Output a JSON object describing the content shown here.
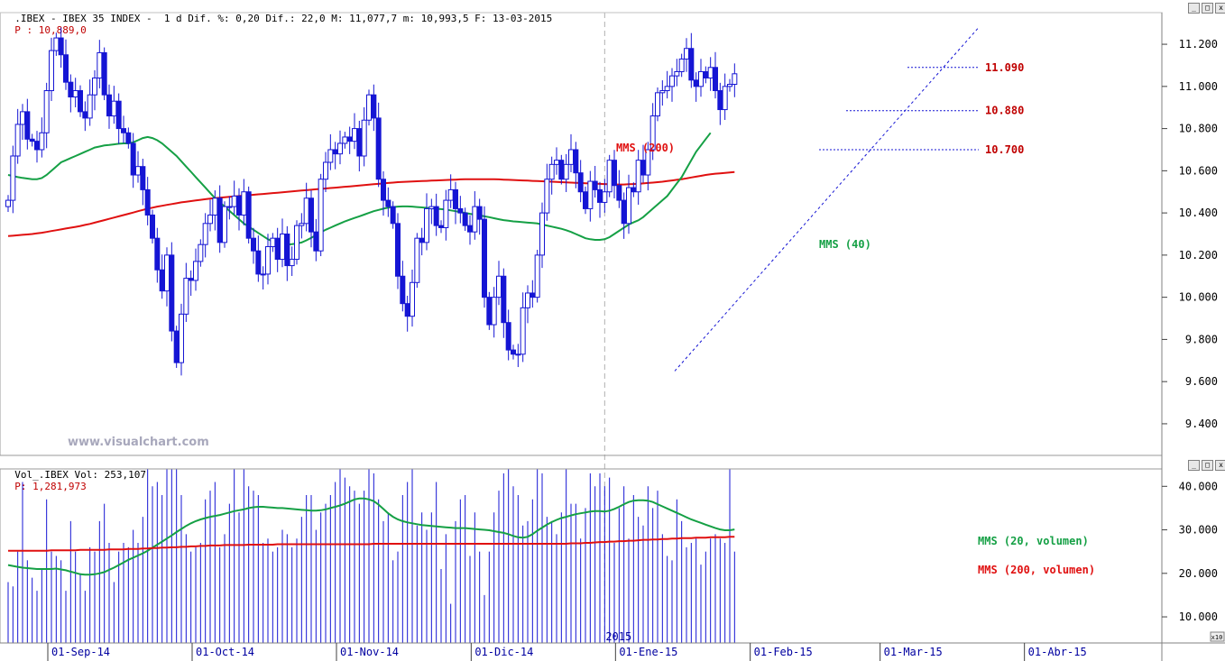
{
  "header": {
    "price_info": ".IBEX - IBEX 35 INDEX -  1 d Dif. %: 0,20 Dif.: 22,0 M: 11,077,7 m: 10,993,5 F: 13-03-2015",
    "price_last": "P : 10,889,0",
    "volume_info": "Vol_.IBEX Vol: 253,107",
    "volume_last": "P: 1,281,973"
  },
  "watermark": "www.visualchart.com",
  "window_buttons": [
    "_",
    "□",
    "x"
  ],
  "scale_badge": "x10",
  "colors": {
    "candle": "#1515d4",
    "ma_fast": "#15a045",
    "ma_slow": "#e01010",
    "level_label": "#c00000",
    "axis": "#0000a0",
    "grid": "#b0b0b0"
  },
  "chart_data": [
    {
      "type": "candlestick",
      "title": "IBEX 35 INDEX",
      "ylim": [
        9250,
        11350
      ],
      "yticks": [
        "11.200",
        "11.000",
        "10.800",
        "10.600",
        "10.400",
        "10.200",
        "10.000",
        "9.800",
        "9.600",
        "9.400"
      ],
      "ytick_values": [
        11200,
        11000,
        10800,
        10600,
        10400,
        10200,
        10000,
        9800,
        9600,
        9400
      ],
      "xticks": [
        "01-Sep-14",
        "01-Oct-14",
        "01-Nov-14",
        "01-Dic-14",
        "01-Ene-15",
        "01-Feb-15",
        "01-Mar-15",
        "01-Abr-15"
      ],
      "xtick_index": [
        9,
        39,
        69,
        97,
        127,
        155,
        182,
        212
      ],
      "year_marker": {
        "label": "2015",
        "index": 124
      },
      "total_slots": 240,
      "closes": [
        10460,
        10670,
        10820,
        10880,
        10750,
        10740,
        10700,
        10780,
        10980,
        11170,
        11230,
        11150,
        11020,
        10950,
        10980,
        10880,
        10850,
        10960,
        11040,
        11160,
        10960,
        10860,
        10930,
        10800,
        10780,
        10730,
        10580,
        10620,
        10510,
        10390,
        10280,
        10130,
        10030,
        10200,
        9840,
        9690,
        9920,
        10090,
        10080,
        10170,
        10250,
        10350,
        10390,
        10470,
        10260,
        10430,
        10430,
        10480,
        10390,
        10500,
        10280,
        10220,
        10110,
        10110,
        10240,
        10280,
        10180,
        10300,
        10150,
        10180,
        10340,
        10350,
        10470,
        10310,
        10220,
        10560,
        10640,
        10700,
        10680,
        10730,
        10760,
        10740,
        10800,
        10670,
        10840,
        10960,
        10850,
        10560,
        10460,
        10430,
        10350,
        10100,
        9970,
        9910,
        10070,
        10280,
        10260,
        10420,
        10430,
        10340,
        10330,
        10460,
        10510,
        10420,
        10400,
        10340,
        10310,
        10430,
        10370,
        10000,
        9870,
        10000,
        10100,
        9880,
        9750,
        9730,
        9730,
        9950,
        10020,
        10000,
        10200,
        10400,
        10560,
        10630,
        10650,
        10560,
        10630,
        10700,
        10590,
        10500,
        10420,
        10550,
        10510,
        10450,
        10500,
        10650,
        10530,
        10460,
        10350,
        10520,
        10500,
        10650,
        10580,
        10700,
        10860,
        10970,
        10980,
        11000,
        11050,
        11070,
        11130,
        11180,
        11030,
        11000,
        11070,
        11040,
        11090,
        10980,
        10890,
        11000,
        11010,
        11060
      ],
      "series_label": "",
      "moving_averages": [
        {
          "name": "MMS (200)",
          "values": [
            10290,
            10292,
            10294,
            10296,
            10298,
            10300,
            10303,
            10306,
            10310,
            10314,
            10318,
            10322,
            10326,
            10330,
            10334,
            10338,
            10343,
            10348,
            10354,
            10360,
            10366,
            10372,
            10378,
            10384,
            10390,
            10396,
            10402,
            10408,
            10414,
            10420,
            10425,
            10430,
            10434,
            10438,
            10442,
            10446,
            10450,
            10453,
            10456,
            10459,
            10462,
            10465,
            10468,
            10470,
            10472,
            10474,
            10476,
            10478,
            10480,
            10482,
            10484,
            10486,
            10488,
            10490,
            10492,
            10494,
            10496,
            10498,
            10500,
            10502,
            10504,
            10506,
            10508,
            10510,
            10512,
            10514,
            10516,
            10518,
            10520,
            10522,
            10524,
            10526,
            10528,
            10530,
            10532,
            10534,
            10536,
            10538,
            10540,
            10542,
            10544,
            10546,
            10547,
            10548,
            10549,
            10550,
            10551,
            10552,
            10553,
            10554,
            10555,
            10556,
            10557,
            10558,
            10559,
            10560,
            10560,
            10560,
            10560,
            10560,
            10560,
            10560,
            10559,
            10558,
            10557,
            10556,
            10555,
            10554,
            10553,
            10552,
            10551,
            10550,
            10549,
            10548,
            10547,
            10546,
            10545,
            10544,
            10543,
            10542,
            10541,
            10540,
            10539,
            10538,
            10537,
            10536,
            10535,
            10535,
            10535,
            10536,
            10537,
            10538,
            10540,
            10542,
            10544,
            10546,
            10548,
            10551,
            10554,
            10557,
            10560,
            10564,
            10568,
            10572,
            10576,
            10580,
            10583,
            10586,
            10588,
            10590,
            10592,
            10594
          ]
        },
        {
          "name": "MMS (40)",
          "values": [
            10580,
            10575,
            10570,
            10566,
            10563,
            10560,
            10560,
            10565,
            10580,
            10600,
            10620,
            10640,
            10650,
            10660,
            10670,
            10680,
            10690,
            10700,
            10710,
            10715,
            10720,
            10722,
            10725,
            10728,
            10730,
            10730,
            10735,
            10745,
            10755,
            10760,
            10755,
            10745,
            10730,
            10710,
            10690,
            10670,
            10645,
            10620,
            10595,
            10570,
            10545,
            10520,
            10495,
            10470,
            10450,
            10430,
            10410,
            10390,
            10370,
            10350,
            10335,
            10320,
            10305,
            10290,
            10275,
            10265,
            10255,
            10250,
            10250,
            10252,
            10255,
            10260,
            10270,
            10282,
            10295,
            10308,
            10320,
            10330,
            10340,
            10350,
            10360,
            10368,
            10376,
            10384,
            10392,
            10400,
            10408,
            10414,
            10420,
            10425,
            10428,
            10430,
            10431,
            10431,
            10430,
            10428,
            10426,
            10424,
            10422,
            10420,
            10418,
            10416,
            10412,
            10408,
            10404,
            10400,
            10396,
            10392,
            10388,
            10384,
            10380,
            10375,
            10370,
            10366,
            10363,
            10360,
            10358,
            10356,
            10354,
            10352,
            10350,
            10345,
            10340,
            10335,
            10330,
            10325,
            10318,
            10310,
            10300,
            10290,
            10280,
            10275,
            10272,
            10272,
            10275,
            10285,
            10300,
            10315,
            10330,
            10345,
            10355,
            10365,
            10380,
            10400,
            10420,
            10440,
            10460,
            10480,
            10510,
            10540,
            10570,
            10610,
            10650,
            10690,
            10720,
            10750,
            10780
          ]
        }
      ],
      "levels": [
        {
          "label": "11.090",
          "value": 11090
        },
        {
          "label": "10.880",
          "value": 10885
        },
        {
          "label": "10.700",
          "value": 10700
        }
      ]
    },
    {
      "type": "bar",
      "title": "Vol_.IBEX",
      "ylim": [
        4000,
        44000
      ],
      "yticks": [
        "40.000",
        "30.000",
        "20.000",
        "10.000"
      ],
      "ytick_values": [
        40000,
        30000,
        20000,
        10000
      ],
      "values": [
        18000,
        17000,
        25000,
        41000,
        23000,
        19000,
        16000,
        21000,
        37000,
        25000,
        24000,
        23000,
        16000,
        32000,
        25000,
        20000,
        16000,
        26000,
        25000,
        32000,
        36000,
        27000,
        18000,
        25000,
        27000,
        26000,
        30000,
        27000,
        33000,
        44000,
        40000,
        41000,
        38000,
        44000,
        44000,
        44000,
        38000,
        29000,
        25000,
        26000,
        27000,
        37000,
        39000,
        41000,
        26000,
        29000,
        36000,
        44000,
        34000,
        44000,
        40000,
        39000,
        38000,
        27000,
        28000,
        25000,
        26000,
        30000,
        29000,
        26000,
        28000,
        33000,
        38000,
        38000,
        30000,
        34000,
        36000,
        38000,
        41000,
        44000,
        42000,
        40000,
        39000,
        36000,
        39000,
        44000,
        43000,
        37000,
        32000,
        34000,
        23000,
        25000,
        38000,
        41000,
        44000,
        31000,
        34000,
        30000,
        34000,
        41000,
        21000,
        29000,
        13000,
        32000,
        37000,
        38000,
        24000,
        34000,
        25000,
        15000,
        25000,
        34000,
        39000,
        43000,
        44000,
        40000,
        38000,
        31000,
        32000,
        37000,
        44000,
        43000,
        33000,
        32000,
        29000,
        34000,
        44000,
        36000,
        36000,
        28000,
        35000,
        43000,
        40000,
        43000,
        40000,
        42000,
        27000,
        35000,
        40000,
        28000,
        38000,
        33000,
        31000,
        40000,
        35000,
        39000,
        29000,
        24000,
        23000,
        37000,
        32000,
        26000,
        27000,
        28000,
        22000,
        25000,
        28000,
        29000,
        28000,
        27000,
        44000,
        25000
      ],
      "moving_averages": [
        {
          "name": "MMS (20, volumen)",
          "values": [
            21900,
            21700,
            21500,
            21300,
            21200,
            21100,
            21000,
            21000,
            21000,
            21000,
            21100,
            20900,
            20700,
            20400,
            20100,
            19800,
            19700,
            19700,
            19800,
            20000,
            20300,
            20800,
            21300,
            21900,
            22500,
            23100,
            23600,
            24100,
            24600,
            25200,
            25900,
            26600,
            27300,
            28000,
            28700,
            29500,
            30200,
            30900,
            31500,
            32000,
            32400,
            32700,
            33000,
            33200,
            33400,
            33700,
            34000,
            34300,
            34500,
            34700,
            35000,
            35200,
            35300,
            35300,
            35200,
            35100,
            35000,
            35000,
            34900,
            34800,
            34700,
            34600,
            34500,
            34400,
            34400,
            34500,
            34700,
            35000,
            35300,
            35600,
            36000,
            36500,
            37000,
            37200,
            37200,
            37000,
            36600,
            35800,
            34800,
            33800,
            33000,
            32400,
            32000,
            31700,
            31500,
            31300,
            31100,
            31000,
            30900,
            30800,
            30700,
            30600,
            30500,
            30400,
            30400,
            30400,
            30300,
            30200,
            30100,
            30000,
            29900,
            29700,
            29500,
            29300,
            29000,
            28600,
            28300,
            28200,
            28400,
            29000,
            29800,
            30500,
            31200,
            31800,
            32300,
            32700,
            33000,
            33300,
            33600,
            33800,
            34000,
            34200,
            34300,
            34300,
            34200,
            34400,
            34800,
            35300,
            35900,
            36400,
            36700,
            36800,
            36800,
            36700,
            36400,
            35900,
            35400,
            34900,
            34400,
            33900,
            33400,
            32900,
            32400,
            32000,
            31600,
            31200,
            30800,
            30400,
            30100,
            29900,
            29900,
            30100
          ]
        },
        {
          "name": "MMS (200, volumen)",
          "values": [
            25200,
            25200,
            25200,
            25200,
            25200,
            25200,
            25200,
            25200,
            25200,
            25300,
            25300,
            25300,
            25300,
            25300,
            25300,
            25400,
            25400,
            25400,
            25400,
            25400,
            25400,
            25500,
            25500,
            25500,
            25500,
            25600,
            25600,
            25600,
            25700,
            25700,
            25800,
            25800,
            25900,
            25900,
            26000,
            26000,
            26100,
            26100,
            26200,
            26200,
            26300,
            26300,
            26400,
            26400,
            26400,
            26500,
            26500,
            26500,
            26500,
            26500,
            26600,
            26600,
            26600,
            26600,
            26600,
            26600,
            26700,
            26700,
            26700,
            26700,
            26700,
            26700,
            26700,
            26700,
            26700,
            26700,
            26700,
            26700,
            26700,
            26700,
            26700,
            26700,
            26700,
            26700,
            26700,
            26700,
            26800,
            26800,
            26800,
            26800,
            26800,
            26800,
            26800,
            26800,
            26800,
            26800,
            26800,
            26800,
            26800,
            26800,
            26800,
            26800,
            26800,
            26800,
            26800,
            26800,
            26800,
            26800,
            26800,
            26800,
            26800,
            26800,
            26800,
            26800,
            26800,
            26800,
            26800,
            26800,
            26800,
            26800,
            26800,
            26800,
            26800,
            26800,
            26800,
            26800,
            26800,
            26900,
            26900,
            26900,
            27000,
            27000,
            27100,
            27200,
            27200,
            27300,
            27300,
            27400,
            27400,
            27500,
            27500,
            27600,
            27700,
            27700,
            27800,
            27800,
            27900,
            27900,
            28000,
            28000,
            28100,
            28100,
            28100,
            28200,
            28200,
            28200,
            28300,
            28300,
            28300,
            28300,
            28400,
            28400
          ]
        }
      ]
    }
  ]
}
